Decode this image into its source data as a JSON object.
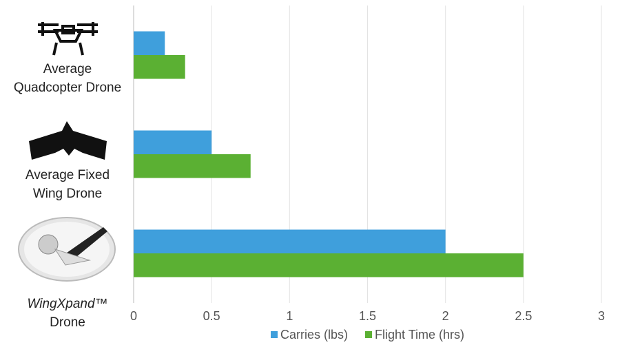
{
  "chart_data": {
    "type": "hbar",
    "categories": [
      [
        "Average",
        "Quadcopter Drone"
      ],
      [
        "Average Fixed",
        "Wing Drone"
      ],
      [
        "WingXpand™",
        "Drone"
      ]
    ],
    "series": [
      {
        "name": "Carries (lbs)",
        "color": "#3f9fdc",
        "values": [
          0.2,
          0.5,
          2.0
        ]
      },
      {
        "name": "Flight Time (hrs)",
        "color": "#5bb033",
        "values": [
          0.33,
          0.75,
          2.5
        ]
      }
    ],
    "xlim": [
      0,
      3
    ],
    "xticks": [
      0,
      0.5,
      1,
      1.5,
      2,
      2.5,
      3
    ],
    "grid": true,
    "legend": "bottom"
  }
}
